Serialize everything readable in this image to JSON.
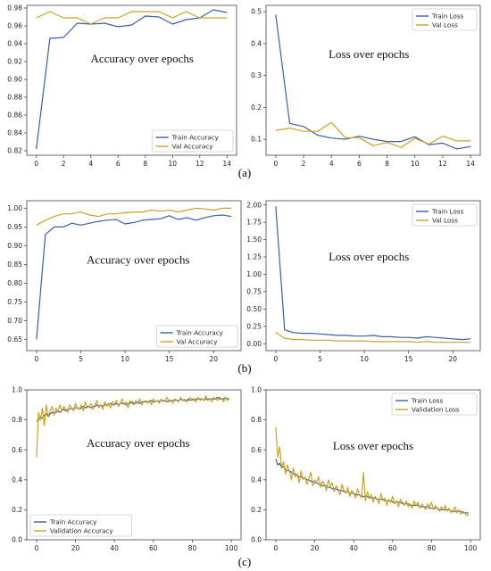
{
  "figure": {
    "captions": [
      "(a)",
      "(b)",
      "(c)"
    ]
  },
  "colors": {
    "train": "#3c5fa0",
    "val": "#c9a227",
    "axis": "#444444",
    "text": "#222222"
  },
  "chart_data": [
    {
      "type": "line",
      "annotation": "Accuracy over epochs",
      "xlim": [
        -0.7,
        14.7
      ],
      "ylim": [
        0.815,
        0.983
      ],
      "xticks": [
        0,
        2,
        4,
        6,
        8,
        10,
        12,
        14
      ],
      "yticks": [
        0.82,
        0.84,
        0.86,
        0.88,
        0.9,
        0.92,
        0.94,
        0.96,
        0.98
      ],
      "ytick_decimals": 2,
      "legend_position": "bottom-right",
      "x": [
        0,
        1,
        2,
        3,
        4,
        5,
        6,
        7,
        8,
        9,
        10,
        11,
        12,
        13,
        14
      ],
      "series": [
        {
          "name": "Train Accuracy",
          "key": "train",
          "values": [
            0.822,
            0.946,
            0.947,
            0.963,
            0.962,
            0.963,
            0.959,
            0.961,
            0.971,
            0.97,
            0.962,
            0.967,
            0.969,
            0.978,
            0.975
          ]
        },
        {
          "name": "Val Accuracy",
          "key": "val",
          "values": [
            0.969,
            0.976,
            0.969,
            0.969,
            0.962,
            0.969,
            0.969,
            0.976,
            0.976,
            0.976,
            0.969,
            0.976,
            0.969,
            0.969,
            0.969
          ]
        }
      ]
    },
    {
      "type": "line",
      "annotation": "Loss over epochs",
      "xlim": [
        -0.7,
        14.7
      ],
      "ylim": [
        0.05,
        0.52
      ],
      "xticks": [
        0,
        2,
        4,
        6,
        8,
        10,
        12,
        14
      ],
      "yticks": [
        0.1,
        0.2,
        0.3,
        0.4,
        0.5
      ],
      "ytick_decimals": 1,
      "legend_position": "top-right",
      "x": [
        0,
        1,
        2,
        3,
        4,
        5,
        6,
        7,
        8,
        9,
        10,
        11,
        12,
        13,
        14
      ],
      "series": [
        {
          "name": "Train Loss",
          "key": "train",
          "values": [
            0.49,
            0.15,
            0.14,
            0.113,
            0.104,
            0.1,
            0.11,
            0.1,
            0.093,
            0.093,
            0.108,
            0.083,
            0.088,
            0.07,
            0.077
          ]
        },
        {
          "name": "Val Loss",
          "key": "val",
          "values": [
            0.128,
            0.135,
            0.125,
            0.125,
            0.153,
            0.105,
            0.105,
            0.08,
            0.09,
            0.075,
            0.103,
            0.085,
            0.11,
            0.095,
            0.095
          ]
        }
      ]
    },
    {
      "type": "line",
      "annotation": "Accuracy over epochs",
      "xlim": [
        -1.1,
        23.1
      ],
      "ylim": [
        0.62,
        1.02
      ],
      "xticks": [
        0,
        5,
        10,
        15,
        20
      ],
      "yticks": [
        0.65,
        0.7,
        0.75,
        0.8,
        0.85,
        0.9,
        0.95,
        1.0
      ],
      "ytick_decimals": 2,
      "legend_position": "bottom-right",
      "x": [
        0,
        1,
        2,
        3,
        4,
        5,
        6,
        7,
        8,
        9,
        10,
        11,
        12,
        13,
        14,
        15,
        16,
        17,
        18,
        19,
        20,
        21,
        22
      ],
      "series": [
        {
          "name": "Train Accuracy",
          "key": "train",
          "values": [
            0.65,
            0.93,
            0.95,
            0.95,
            0.96,
            0.955,
            0.96,
            0.965,
            0.968,
            0.97,
            0.958,
            0.962,
            0.968,
            0.97,
            0.972,
            0.98,
            0.97,
            0.975,
            0.968,
            0.975,
            0.98,
            0.982,
            0.978
          ]
        },
        {
          "name": "Val Accuracy",
          "key": "val",
          "values": [
            0.955,
            0.968,
            0.978,
            0.985,
            0.985,
            0.99,
            0.982,
            0.978,
            0.985,
            0.985,
            0.988,
            0.99,
            0.99,
            0.995,
            0.992,
            0.995,
            0.99,
            0.995,
            1.0,
            0.998,
            0.995,
            1.0,
            1.0
          ]
        }
      ]
    },
    {
      "type": "line",
      "annotation": "Loss over epochs",
      "xlim": [
        -1.1,
        23.1
      ],
      "ylim": [
        -0.1,
        2.06
      ],
      "xticks": [
        0,
        5,
        10,
        15,
        20
      ],
      "yticks": [
        0.0,
        0.25,
        0.5,
        0.75,
        1.0,
        1.25,
        1.5,
        1.75,
        2.0
      ],
      "ytick_decimals": 2,
      "legend_position": "top-right",
      "x": [
        0,
        1,
        2,
        3,
        4,
        5,
        6,
        7,
        8,
        9,
        10,
        11,
        12,
        13,
        14,
        15,
        16,
        17,
        18,
        19,
        20,
        21,
        22
      ],
      "series": [
        {
          "name": "Train Loss",
          "key": "train",
          "values": [
            1.98,
            0.2,
            0.16,
            0.15,
            0.15,
            0.14,
            0.13,
            0.12,
            0.12,
            0.11,
            0.11,
            0.12,
            0.1,
            0.1,
            0.09,
            0.09,
            0.08,
            0.1,
            0.09,
            0.08,
            0.07,
            0.06,
            0.07
          ]
        },
        {
          "name": "Val Loss",
          "key": "val",
          "values": [
            0.16,
            0.08,
            0.06,
            0.06,
            0.05,
            0.05,
            0.05,
            0.04,
            0.04,
            0.04,
            0.04,
            0.03,
            0.03,
            0.03,
            0.03,
            0.03,
            0.02,
            0.03,
            0.02,
            0.02,
            0.02,
            0.02,
            0.02
          ]
        }
      ]
    },
    {
      "type": "line",
      "annotation": "Accuracy over epochs",
      "xlim": [
        -5,
        105
      ],
      "ylim": [
        0.0,
        1.0
      ],
      "xticks": [
        0,
        20,
        40,
        60,
        80,
        100
      ],
      "yticks": [
        0.0,
        0.2,
        0.4,
        0.6,
        0.8,
        1.0
      ],
      "ytick_decimals": 1,
      "legend_position": "bottom-left",
      "x_range": [
        0,
        99
      ],
      "series": [
        {
          "name": "Train Accuracy",
          "key": "train",
          "values": [
            0.79,
            0.8,
            0.82,
            0.81,
            0.83,
            0.84,
            0.82,
            0.84,
            0.85,
            0.84,
            0.85,
            0.86,
            0.85,
            0.86,
            0.87,
            0.86,
            0.87,
            0.87,
            0.88,
            0.87,
            0.88,
            0.88,
            0.87,
            0.88,
            0.89,
            0.88,
            0.89,
            0.89,
            0.88,
            0.89,
            0.89,
            0.9,
            0.89,
            0.9,
            0.89,
            0.9,
            0.9,
            0.9,
            0.91,
            0.9,
            0.9,
            0.91,
            0.9,
            0.91,
            0.91,
            0.91,
            0.9,
            0.91,
            0.91,
            0.92,
            0.91,
            0.91,
            0.92,
            0.91,
            0.92,
            0.92,
            0.92,
            0.92,
            0.92,
            0.93,
            0.92,
            0.92,
            0.93,
            0.92,
            0.93,
            0.93,
            0.93,
            0.92,
            0.93,
            0.93,
            0.93,
            0.93,
            0.93,
            0.93,
            0.94,
            0.93,
            0.93,
            0.93,
            0.94,
            0.93,
            0.94,
            0.93,
            0.94,
            0.94,
            0.94,
            0.94,
            0.93,
            0.94,
            0.94,
            0.94,
            0.94,
            0.94,
            0.94,
            0.95,
            0.94,
            0.94,
            0.94,
            0.95,
            0.94,
            0.94
          ]
        },
        {
          "name": "Validation Accuracy",
          "key": "val",
          "values": [
            0.55,
            0.85,
            0.8,
            0.88,
            0.76,
            0.9,
            0.82,
            0.86,
            0.89,
            0.83,
            0.88,
            0.85,
            0.9,
            0.86,
            0.89,
            0.87,
            0.85,
            0.9,
            0.88,
            0.86,
            0.91,
            0.88,
            0.87,
            0.9,
            0.86,
            0.92,
            0.88,
            0.89,
            0.91,
            0.87,
            0.9,
            0.93,
            0.88,
            0.9,
            0.87,
            0.92,
            0.89,
            0.91,
            0.88,
            0.92,
            0.9,
            0.93,
            0.89,
            0.91,
            0.94,
            0.9,
            0.92,
            0.88,
            0.93,
            0.91,
            0.9,
            0.93,
            0.91,
            0.94,
            0.9,
            0.92,
            0.93,
            0.91,
            0.93,
            0.9,
            0.94,
            0.92,
            0.93,
            0.91,
            0.94,
            0.92,
            0.93,
            0.95,
            0.92,
            0.93,
            0.91,
            0.94,
            0.93,
            0.92,
            0.95,
            0.93,
            0.94,
            0.92,
            0.93,
            0.95,
            0.93,
            0.94,
            0.92,
            0.95,
            0.93,
            0.94,
            0.93,
            0.96,
            0.93,
            0.94,
            0.92,
            0.95,
            0.94,
            0.93,
            0.95,
            0.94,
            0.92,
            0.95,
            0.93,
            0.94
          ]
        }
      ]
    },
    {
      "type": "line",
      "annotation": "Loss over epochs",
      "xlim": [
        -5,
        105
      ],
      "ylim": [
        0.0,
        1.0
      ],
      "xticks": [
        0,
        20,
        40,
        60,
        80,
        100
      ],
      "yticks": [
        0.0,
        0.2,
        0.4,
        0.6,
        0.8,
        1.0
      ],
      "ytick_decimals": 1,
      "legend_position": "top-right",
      "x_range": [
        0,
        99
      ],
      "series": [
        {
          "name": "Train Loss",
          "key": "train",
          "values": [
            0.54,
            0.5,
            0.51,
            0.48,
            0.49,
            0.47,
            0.46,
            0.46,
            0.45,
            0.44,
            0.44,
            0.43,
            0.42,
            0.42,
            0.41,
            0.41,
            0.4,
            0.4,
            0.39,
            0.39,
            0.38,
            0.38,
            0.37,
            0.37,
            0.36,
            0.36,
            0.36,
            0.35,
            0.35,
            0.34,
            0.34,
            0.34,
            0.33,
            0.33,
            0.33,
            0.32,
            0.32,
            0.32,
            0.31,
            0.31,
            0.31,
            0.3,
            0.3,
            0.3,
            0.29,
            0.29,
            0.29,
            0.29,
            0.28,
            0.28,
            0.28,
            0.28,
            0.27,
            0.27,
            0.27,
            0.27,
            0.26,
            0.26,
            0.26,
            0.26,
            0.25,
            0.25,
            0.25,
            0.25,
            0.25,
            0.24,
            0.24,
            0.24,
            0.24,
            0.23,
            0.23,
            0.23,
            0.23,
            0.23,
            0.22,
            0.22,
            0.22,
            0.22,
            0.22,
            0.21,
            0.21,
            0.21,
            0.21,
            0.21,
            0.2,
            0.2,
            0.2,
            0.2,
            0.2,
            0.2,
            0.19,
            0.19,
            0.19,
            0.19,
            0.19,
            0.19,
            0.18,
            0.18,
            0.18,
            0.18
          ]
        },
        {
          "name": "Validation Loss",
          "key": "val",
          "values": [
            0.75,
            0.55,
            0.62,
            0.48,
            0.52,
            0.44,
            0.5,
            0.46,
            0.4,
            0.48,
            0.42,
            0.44,
            0.38,
            0.46,
            0.4,
            0.42,
            0.37,
            0.41,
            0.45,
            0.36,
            0.4,
            0.38,
            0.42,
            0.35,
            0.39,
            0.37,
            0.33,
            0.4,
            0.36,
            0.38,
            0.32,
            0.36,
            0.34,
            0.3,
            0.37,
            0.33,
            0.31,
            0.35,
            0.29,
            0.33,
            0.31,
            0.28,
            0.34,
            0.3,
            0.28,
            0.45,
            0.26,
            0.32,
            0.28,
            0.3,
            0.25,
            0.29,
            0.27,
            0.24,
            0.31,
            0.26,
            0.28,
            0.23,
            0.27,
            0.25,
            0.29,
            0.24,
            0.26,
            0.22,
            0.27,
            0.25,
            0.23,
            0.26,
            0.22,
            0.24,
            0.21,
            0.26,
            0.23,
            0.25,
            0.21,
            0.24,
            0.22,
            0.2,
            0.24,
            0.22,
            0.25,
            0.2,
            0.23,
            0.21,
            0.19,
            0.22,
            0.2,
            0.23,
            0.19,
            0.21,
            0.18,
            0.2,
            0.22,
            0.18,
            0.2,
            0.17,
            0.19,
            0.18,
            0.16,
            0.17
          ]
        }
      ]
    }
  ]
}
